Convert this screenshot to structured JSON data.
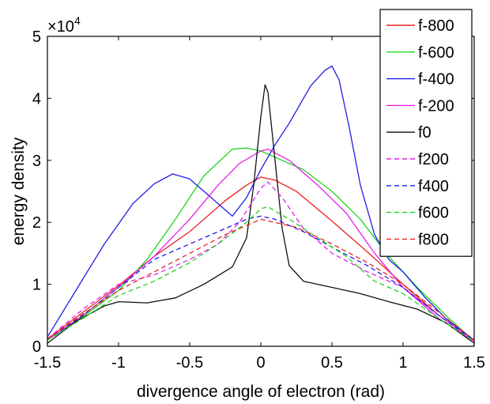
{
  "chart_data": {
    "type": "line",
    "xlabel": "divergence angle of electron (rad)",
    "ylabel": "energy density",
    "exponent_label": "×10",
    "exponent_power": "4",
    "xlim": [
      -1.5,
      1.5
    ],
    "ylim": [
      0,
      5
    ],
    "x_ticks": [
      -1.5,
      -1,
      -0.5,
      0,
      0.5,
      1,
      1.5
    ],
    "x_tick_labels": [
      "-1.5",
      "-1",
      "-0.5",
      "0",
      "0.5",
      "1",
      "1.5"
    ],
    "y_ticks": [
      0,
      1,
      2,
      3,
      4,
      5
    ],
    "y_tick_labels": [
      "0",
      "1",
      "2",
      "3",
      "4",
      "5"
    ],
    "grid": false,
    "legend_position": "top-right",
    "series": [
      {
        "name": "f-800",
        "color": "#e8201e",
        "dash": "solid",
        "x": [
          -1.5,
          -1.25,
          -1.0,
          -0.75,
          -0.5,
          -0.25,
          -0.1,
          0.0,
          0.1,
          0.25,
          0.5,
          0.75,
          1.0,
          1.25,
          1.5
        ],
        "y": [
          0.12,
          0.55,
          0.98,
          1.45,
          1.85,
          2.35,
          2.6,
          2.73,
          2.68,
          2.5,
          2.02,
          1.52,
          1.0,
          0.5,
          0.1
        ]
      },
      {
        "name": "f-600",
        "color": "#1ed41e",
        "dash": "solid",
        "x": [
          -1.5,
          -1.25,
          -1.0,
          -0.8,
          -0.6,
          -0.4,
          -0.2,
          -0.1,
          0.0,
          0.15,
          0.3,
          0.5,
          0.7,
          0.9,
          1.1,
          1.3,
          1.5
        ],
        "y": [
          0.1,
          0.48,
          0.9,
          1.4,
          2.05,
          2.75,
          3.18,
          3.2,
          3.15,
          3.0,
          2.85,
          2.5,
          2.05,
          1.45,
          0.95,
          0.5,
          0.08
        ]
      },
      {
        "name": "f-400",
        "color": "#1e1ee8",
        "dash": "solid",
        "x": [
          -1.5,
          -1.3,
          -1.1,
          -0.9,
          -0.75,
          -0.62,
          -0.5,
          -0.35,
          -0.2,
          -0.1,
          0.0,
          0.1,
          0.2,
          0.35,
          0.45,
          0.5,
          0.55,
          0.62,
          0.7,
          0.8,
          0.9,
          1.0,
          1.15,
          1.3,
          1.5
        ],
        "y": [
          0.15,
          0.9,
          1.65,
          2.3,
          2.62,
          2.78,
          2.7,
          2.4,
          2.1,
          2.4,
          2.85,
          3.25,
          3.6,
          4.2,
          4.45,
          4.52,
          4.3,
          3.55,
          2.6,
          1.8,
          1.4,
          1.2,
          0.8,
          0.45,
          0.1
        ]
      },
      {
        "name": "f-200",
        "color": "#e81ee8",
        "dash": "solid",
        "x": [
          -1.5,
          -1.25,
          -1.0,
          -0.75,
          -0.5,
          -0.3,
          -0.15,
          0.0,
          0.05,
          0.2,
          0.4,
          0.6,
          0.8,
          1.0,
          1.25,
          1.5
        ],
        "y": [
          0.1,
          0.5,
          0.95,
          1.45,
          2.05,
          2.6,
          2.95,
          3.15,
          3.18,
          3.0,
          2.6,
          2.15,
          1.5,
          0.95,
          0.45,
          0.08
        ]
      },
      {
        "name": "f0",
        "color": "#111111",
        "dash": "solid",
        "x": [
          -1.5,
          -1.3,
          -1.1,
          -1.0,
          -0.8,
          -0.6,
          -0.4,
          -0.2,
          -0.1,
          -0.05,
          0.0,
          0.03,
          0.05,
          0.1,
          0.15,
          0.2,
          0.3,
          0.5,
          0.7,
          0.9,
          1.1,
          1.3,
          1.5
        ],
        "y": [
          0.05,
          0.4,
          0.65,
          0.72,
          0.7,
          0.78,
          1.0,
          1.28,
          1.75,
          2.6,
          3.7,
          4.22,
          4.1,
          3.0,
          1.9,
          1.3,
          1.05,
          0.95,
          0.85,
          0.72,
          0.6,
          0.38,
          0.05
        ]
      },
      {
        "name": "f200",
        "color": "#e81ee8",
        "dash": "dashed",
        "x": [
          -1.5,
          -1.25,
          -1.0,
          -0.75,
          -0.5,
          -0.3,
          -0.15,
          0.0,
          0.05,
          0.15,
          0.3,
          0.5,
          0.75,
          1.0,
          1.25,
          1.5
        ],
        "y": [
          0.12,
          0.6,
          1.0,
          1.15,
          1.4,
          1.65,
          2.0,
          2.55,
          2.65,
          2.4,
          1.9,
          1.5,
          1.2,
          0.95,
          0.5,
          0.1
        ]
      },
      {
        "name": "f400",
        "color": "#1e1ee8",
        "dash": "dashed",
        "x": [
          -1.5,
          -1.25,
          -1.0,
          -0.75,
          -0.5,
          -0.3,
          -0.1,
          0.0,
          0.1,
          0.3,
          0.5,
          0.75,
          1.0,
          1.25,
          1.5
        ],
        "y": [
          0.1,
          0.5,
          0.95,
          1.4,
          1.65,
          1.85,
          2.05,
          2.1,
          2.05,
          1.85,
          1.6,
          1.3,
          0.95,
          0.5,
          0.08
        ]
      },
      {
        "name": "f600",
        "color": "#1ed41e",
        "dash": "dashed",
        "x": [
          -1.5,
          -1.25,
          -1.0,
          -0.75,
          -0.5,
          -0.3,
          -0.1,
          0.0,
          0.05,
          0.2,
          0.4,
          0.6,
          0.8,
          1.0,
          1.25,
          1.5
        ],
        "y": [
          0.1,
          0.45,
          0.82,
          1.05,
          1.35,
          1.65,
          2.0,
          2.22,
          2.25,
          2.05,
          1.75,
          1.45,
          1.05,
          0.85,
          0.45,
          0.08
        ]
      },
      {
        "name": "f800",
        "color": "#e8201e",
        "dash": "dashed",
        "x": [
          -1.5,
          -1.25,
          -1.0,
          -0.75,
          -0.5,
          -0.25,
          0.0,
          0.25,
          0.5,
          0.75,
          1.0,
          1.25,
          1.5
        ],
        "y": [
          0.12,
          0.52,
          0.9,
          1.2,
          1.5,
          1.8,
          2.05,
          1.92,
          1.65,
          1.35,
          1.0,
          0.55,
          0.1
        ]
      }
    ]
  }
}
